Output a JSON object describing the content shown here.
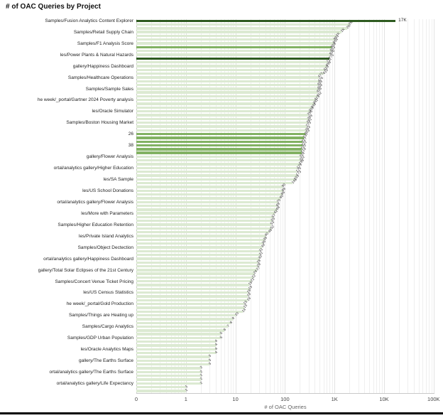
{
  "header": {
    "title": "# of OAC Queries by Project"
  },
  "chart_data": {
    "type": "bar",
    "orientation": "horizontal",
    "title": "# of OAC Queries by Project",
    "xlabel": "# of OAC Queries",
    "x_scale": "log",
    "x_axis_start_label": "0",
    "x_ticks": [
      "0",
      "1",
      "10",
      "100",
      "1K",
      "10K",
      "100K"
    ],
    "x_tick_values": [
      0.1,
      1,
      10,
      100,
      1000,
      10000,
      100000
    ],
    "grid": "vertical-log-minor-and-major",
    "legend": "none",
    "colors": {
      "light": "#dcead2",
      "medium": "#82b263",
      "dark": "#2e5b20"
    },
    "axis_label_every_n_bars": 3,
    "axis_categories": [
      "Samples/Fusion Analytics Content Explorer",
      "Samples/Retail Supply Chain",
      "Samples/F1 Analysis Score",
      "les/Power Plants & Natural Hazards",
      "gallery/Happiness Dashboard",
      "Samples/Healthcare Operations",
      "Samples/Sample Sales",
      "he week/_portal/Gartner 2024 Poverty analysis",
      "les/Oracle Simulator",
      "Samples/Boston Housing Market",
      "26",
      "38",
      "gallery/Flower Analysis",
      "ortal/analytics gallery/Higher Education",
      "les/SA Sample",
      "les/US School Donations",
      "ortal/analytics gallery/Flower Analysis",
      "les/More with Parameters",
      "Samples/Higher Education Retention",
      "les/Private Island Analytics",
      "Samples/Object Dectection",
      "ortal/analytics gallery/Happiness Dashboard",
      "gallery/Total Solar Eclipses of the 21st Century",
      "Samples/Concert Venue Ticket Pricing",
      "les/US Census Statistics",
      "he week/_portal/Gold Production",
      "Samples/Things are Heating up",
      "Samples/Cargo Analytics",
      "Samples/GDP Urban Population",
      "les/Oracle Analytics Maps",
      "gallery/The Earths Surface",
      "ortal/analytics gallery/The Earths Surface",
      "ortal/analytics gallery/Life Expectancy"
    ],
    "bars": [
      {
        "v": 17000,
        "t": "17K",
        "c": "d"
      },
      {
        "v": 2000,
        "t": "2K",
        "c": "l"
      },
      {
        "v": 1800,
        "t": "2K",
        "c": "l"
      },
      {
        "v": 1400,
        "t": "1K",
        "c": "l"
      },
      {
        "v": 1100,
        "t": "1K",
        "c": "l"
      },
      {
        "v": 991,
        "t": "991",
        "c": "l"
      },
      {
        "v": 954,
        "t": "954",
        "c": "l"
      },
      {
        "v": 858,
        "t": "858",
        "c": "m"
      },
      {
        "v": 853,
        "t": "853",
        "c": "l"
      },
      {
        "v": 806,
        "t": "806",
        "c": "l"
      },
      {
        "v": 775,
        "t": "775",
        "c": "d"
      },
      {
        "v": 711,
        "t": "711",
        "c": "l"
      },
      {
        "v": 698,
        "t": "698",
        "c": "l"
      },
      {
        "v": 616,
        "t": "616",
        "c": "l"
      },
      {
        "v": 610,
        "t": "610",
        "c": "l"
      },
      {
        "v": 477,
        "t": "477",
        "c": "l"
      },
      {
        "v": 476,
        "t": "476",
        "c": "l"
      },
      {
        "v": 459,
        "t": "459",
        "c": "l"
      },
      {
        "v": 458,
        "t": "458",
        "c": "l"
      },
      {
        "v": 456,
        "t": "456",
        "c": "l"
      },
      {
        "v": 452,
        "t": "452",
        "c": "l"
      },
      {
        "v": 413,
        "t": "413",
        "c": "l"
      },
      {
        "v": 382,
        "t": "382",
        "c": "l"
      },
      {
        "v": 348,
        "t": "348",
        "c": "l"
      },
      {
        "v": 308,
        "t": "308",
        "c": "l"
      },
      {
        "v": 296,
        "t": "296",
        "c": "l"
      },
      {
        "v": 289,
        "t": "289",
        "c": "l"
      },
      {
        "v": 281,
        "t": "281",
        "c": "l"
      },
      {
        "v": 273,
        "t": "273",
        "c": "l"
      },
      {
        "v": 263,
        "t": "263",
        "c": "l"
      },
      {
        "v": 253,
        "t": "253",
        "c": "m"
      },
      {
        "v": 237,
        "t": "237",
        "c": "m"
      },
      {
        "v": 227,
        "t": "227",
        "c": "m"
      },
      {
        "v": 222,
        "t": "222",
        "c": "m"
      },
      {
        "v": 220,
        "t": "220",
        "c": "m"
      },
      {
        "v": 214,
        "t": "214",
        "c": "m"
      },
      {
        "v": 204,
        "t": "204",
        "c": "l"
      },
      {
        "v": 202,
        "t": "202",
        "c": "l"
      },
      {
        "v": 198,
        "t": "198",
        "c": "l"
      },
      {
        "v": 179,
        "t": "179",
        "c": "l"
      },
      {
        "v": 175,
        "t": "175",
        "c": "l"
      },
      {
        "v": 173,
        "t": "173",
        "c": "l"
      },
      {
        "v": 155,
        "t": "155",
        "c": "l"
      },
      {
        "v": 140,
        "t": "140",
        "c": "l"
      },
      {
        "v": 90,
        "t": "90",
        "c": "l"
      },
      {
        "v": 88,
        "t": "88",
        "c": "l"
      },
      {
        "v": 86,
        "t": "86",
        "c": "l"
      },
      {
        "v": 80,
        "t": "80",
        "c": "l"
      },
      {
        "v": 70,
        "t": "70",
        "c": "l"
      },
      {
        "v": 69,
        "t": "69",
        "c": "l"
      },
      {
        "v": 68,
        "t": "68",
        "c": "l"
      },
      {
        "v": 62,
        "t": "62",
        "c": "l"
      },
      {
        "v": 57,
        "t": "57",
        "c": "l"
      },
      {
        "v": 55,
        "t": "55",
        "c": "l"
      },
      {
        "v": 53,
        "t": "53",
        "c": "l"
      },
      {
        "v": 52,
        "t": "52",
        "c": "l"
      },
      {
        "v": 48,
        "t": "48",
        "c": "l"
      },
      {
        "v": 40,
        "t": "40",
        "c": "l"
      },
      {
        "v": 38,
        "t": "38",
        "c": "l"
      },
      {
        "v": 36,
        "t": "36",
        "c": "l"
      },
      {
        "v": 34,
        "t": "34",
        "c": "l"
      },
      {
        "v": 31,
        "t": "31",
        "c": "l"
      },
      {
        "v": 31,
        "t": "31",
        "c": "l"
      },
      {
        "v": 30,
        "t": "30",
        "c": "l"
      },
      {
        "v": 28,
        "t": "28",
        "c": "l"
      },
      {
        "v": 28,
        "t": "28",
        "c": "l"
      },
      {
        "v": 27,
        "t": "27",
        "c": "l"
      },
      {
        "v": 24,
        "t": "24",
        "c": "l"
      },
      {
        "v": 22,
        "t": "22",
        "c": "l"
      },
      {
        "v": 21,
        "t": "21",
        "c": "l"
      },
      {
        "v": 19,
        "t": "19",
        "c": "l"
      },
      {
        "v": 19,
        "t": "19",
        "c": "l"
      },
      {
        "v": 18,
        "t": "18",
        "c": "l"
      },
      {
        "v": 18,
        "t": "18",
        "c": "l"
      },
      {
        "v": 18,
        "t": "18",
        "c": "l"
      },
      {
        "v": 15,
        "t": "15",
        "c": "l"
      },
      {
        "v": 15,
        "t": "15",
        "c": "l"
      },
      {
        "v": 14,
        "t": "14",
        "c": "l"
      },
      {
        "v": 10,
        "t": "10",
        "c": "l"
      },
      {
        "v": 9,
        "t": "9",
        "c": "l"
      },
      {
        "v": 8,
        "t": "8",
        "c": "l"
      },
      {
        "v": 7,
        "t": "7",
        "c": "l"
      },
      {
        "v": 6,
        "t": "6",
        "c": "l"
      },
      {
        "v": 5,
        "t": "5",
        "c": "l"
      },
      {
        "v": 5,
        "t": "5",
        "c": "l"
      },
      {
        "v": 4,
        "t": "4",
        "c": "l"
      },
      {
        "v": 4,
        "t": "4",
        "c": "l"
      },
      {
        "v": 4,
        "t": "4",
        "c": "l"
      },
      {
        "v": 4,
        "t": "4",
        "c": "l"
      },
      {
        "v": 3,
        "t": "3",
        "c": "l"
      },
      {
        "v": 3,
        "t": "3",
        "c": "l"
      },
      {
        "v": 3,
        "t": "3",
        "c": "l"
      },
      {
        "v": 2,
        "t": "2",
        "c": "l"
      },
      {
        "v": 2,
        "t": "2",
        "c": "l"
      },
      {
        "v": 2,
        "t": "2",
        "c": "l"
      },
      {
        "v": 2,
        "t": "2",
        "c": "l"
      },
      {
        "v": 2,
        "t": "2",
        "c": "l"
      },
      {
        "v": 1,
        "t": "1",
        "c": "l"
      },
      {
        "v": 1,
        "t": "1",
        "c": "l"
      }
    ]
  }
}
